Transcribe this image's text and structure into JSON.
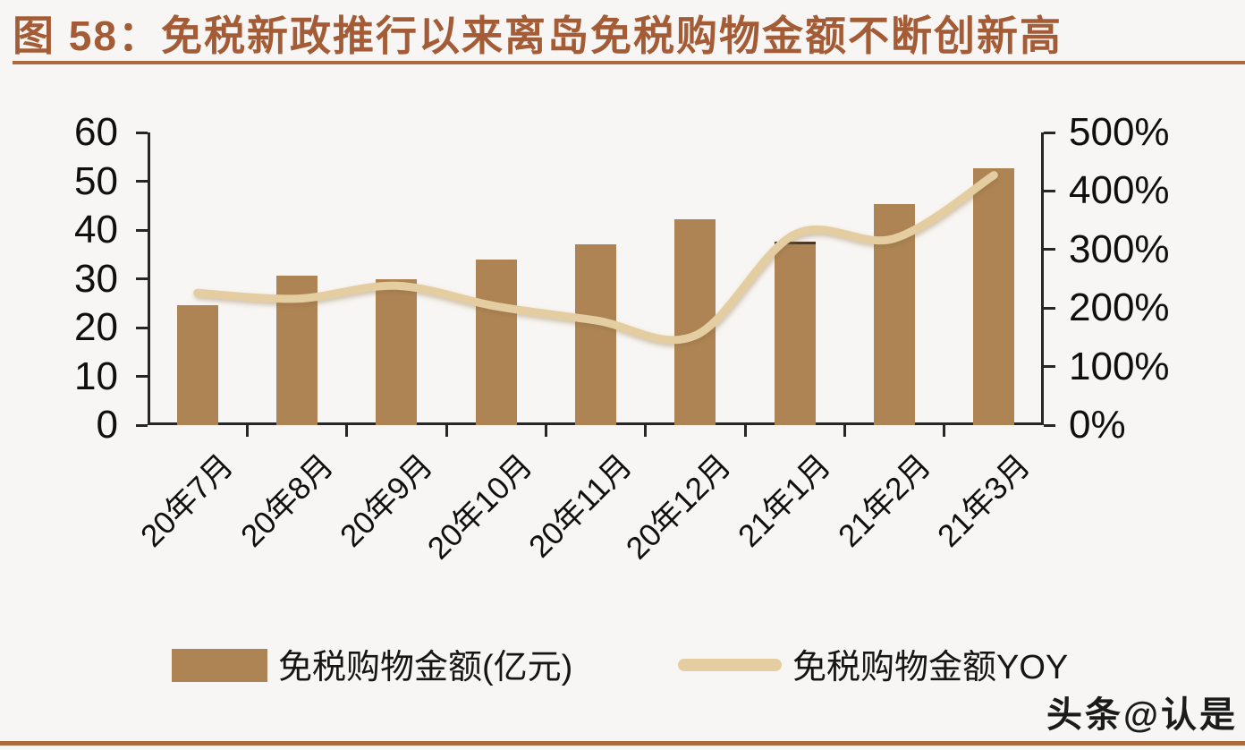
{
  "title": "图 58：免税新政推行以来离岛免税购物金额不断创新高",
  "watermark": "头条@认是",
  "colors": {
    "background": "#f8f6f4",
    "title_text": "#a45c36",
    "rule": "#ad6a3c",
    "bar": "#ae8454",
    "line": "#e4cda0",
    "axis": "#262626",
    "highlight_edge": "#4a3723"
  },
  "chart_data": {
    "type": "bar",
    "subtype": "bar-with-line-overlay",
    "categories": [
      "20年7月",
      "20年8月",
      "20年9月",
      "20年10月",
      "20年11月",
      "20年12月",
      "21年1月",
      "21年2月",
      "21年3月"
    ],
    "series": [
      {
        "name": "免税购物金额(亿元)",
        "type": "bar",
        "axis": "left",
        "color": "#ae8454",
        "values": [
          24.6,
          30.7,
          30.0,
          33.9,
          37.0,
          42.3,
          37.6,
          45.4,
          52.6
        ]
      },
      {
        "name": "免税购物金额YOY",
        "type": "line",
        "axis": "right",
        "color": "#e4cda0",
        "values_pct": [
          226,
          216,
          238,
          203,
          179,
          153,
          326,
          319,
          427
        ]
      }
    ],
    "left_axis": {
      "min": 0,
      "max": 60,
      "step": 10,
      "tick_labels": [
        "0",
        "10",
        "20",
        "30",
        "40",
        "50",
        "60"
      ]
    },
    "right_axis": {
      "min_pct": 0,
      "max_pct": 500,
      "step_pct": 100,
      "tick_labels": [
        "0%",
        "100%",
        "200%",
        "300%",
        "400%",
        "500%"
      ]
    },
    "grid": "off",
    "legend_position": "bottom",
    "highlighted_bar_index": 6,
    "legend": [
      {
        "label": "免税购物金额(亿元)",
        "swatch": "bar"
      },
      {
        "label": "免税购物金额YOY",
        "swatch": "line"
      }
    ]
  }
}
